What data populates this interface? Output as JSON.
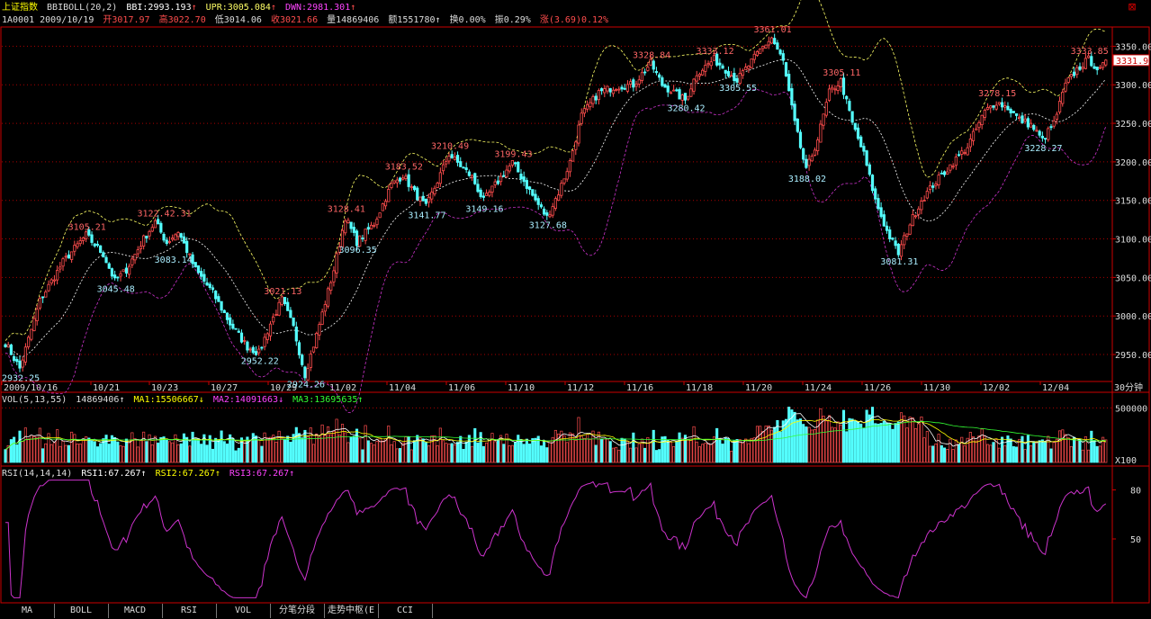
{
  "colors": {
    "up": "#ff4d4d",
    "down": "#54ffff",
    "mid": "#ffffff",
    "upper": "#ffff66",
    "lower": "#cc33cc",
    "grid": "#aa0000",
    "rsi": "#cc33cc",
    "ma1": "#ffffff",
    "ma2": "#ffff00",
    "ma3": "#33ff33",
    "label_up": "#ff6666",
    "label_down": "#aaeeff",
    "frame": "#cc0000"
  },
  "header": {
    "index_name": "上证指数",
    "indicator": "BBIBOLL(20,2)",
    "bbi": "BBI:2993.193",
    "upr": "UPR:3005.084",
    "dwn": "DWN:2981.301",
    "code_line": "1A0001 2009/10/19",
    "open": "开3017.97",
    "high": "高3022.70",
    "low": "低3014.06",
    "close": "收3021.66",
    "volume": "量14869406",
    "amount": "额1551780",
    "turnover": "换0.00%",
    "amplitude": "振0.29%",
    "change": "涨(3.69)0.12%"
  },
  "price_axis": {
    "ticks": [
      "3350.00",
      "3300.00",
      "3250.00",
      "3200.00",
      "3150.00",
      "3100.00",
      "3050.00",
      "3000.00",
      "2950.00"
    ],
    "current": "3331.9"
  },
  "time_axis": {
    "labels": [
      "2009/10/16",
      "10/21",
      "10/23",
      "10/27",
      "10/29",
      "11/02",
      "11/04",
      "11/06",
      "11/10",
      "11/12",
      "11/16",
      "11/18",
      "11/20",
      "11/24",
      "11/26",
      "11/30",
      "12/02",
      "12/04"
    ],
    "period": "30分钟"
  },
  "price_annotations": [
    {
      "text": "3105.21",
      "dir": "up"
    },
    {
      "text": "3045.48",
      "dir": "down"
    },
    {
      "text": "3122.42.31",
      "dir": "up"
    },
    {
      "text": "3083.14",
      "dir": "down"
    },
    {
      "text": "3021.13",
      "dir": "up"
    },
    {
      "text": "2952.22",
      "dir": "down"
    },
    {
      "text": "2932.25",
      "dir": "down"
    },
    {
      "text": "2924.26",
      "dir": "down"
    },
    {
      "text": "3128.41",
      "dir": "up"
    },
    {
      "text": "3096.35",
      "dir": "down"
    },
    {
      "text": "3183.52",
      "dir": "up"
    },
    {
      "text": "3141.77",
      "dir": "down"
    },
    {
      "text": "3210.49",
      "dir": "up"
    },
    {
      "text": "3149.16",
      "dir": "down"
    },
    {
      "text": "3199.43",
      "dir": "up"
    },
    {
      "text": "3127.68",
      "dir": "down"
    },
    {
      "text": "3328.84",
      "dir": "up"
    },
    {
      "text": "3280.42",
      "dir": "down"
    },
    {
      "text": "3333.12",
      "dir": "up"
    },
    {
      "text": "3305.55",
      "dir": "down"
    },
    {
      "text": "3361.01",
      "dir": "up"
    },
    {
      "text": "3305.11",
      "dir": "up"
    },
    {
      "text": "3188.02",
      "dir": "down"
    },
    {
      "text": "3081.31",
      "dir": "down"
    },
    {
      "text": "3278.15",
      "dir": "up"
    },
    {
      "text": "3228.27",
      "dir": "down"
    },
    {
      "text": "3333.85",
      "dir": "up"
    }
  ],
  "volume_panel": {
    "title": "VOL(5,13,55)",
    "value": "14869406",
    "ma1": "MA1:15506667",
    "ma2": "MA2:14091663",
    "ma3": "MA3:13695635",
    "axis_top": "500000",
    "axis_unit": "X100"
  },
  "rsi_panel": {
    "title": "RSI(14,14,14)",
    "rsi1": "RSI1:67.267",
    "rsi2": "RSI2:67.267",
    "rsi3": "RSI3:67.267",
    "axis_top": "80",
    "axis_mid": "50"
  },
  "bottom_tabs": [
    "MA",
    "BOLL",
    "MACD",
    "RSI",
    "VOL",
    "分笔分段",
    "走势中枢(E",
    "CCI"
  ],
  "window_close": "⊠"
}
